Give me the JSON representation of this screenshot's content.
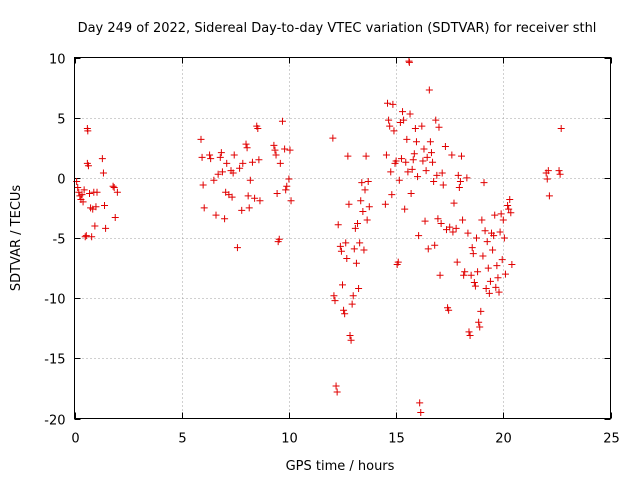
{
  "chart_data": {
    "type": "scatter",
    "title": "Day 249 of 2022, Sidereal Day-to-day VTEC variation (SDTVAR) for receiver sthl",
    "xlabel": "GPS time / hours",
    "ylabel": "SDTVAR / TECUs",
    "xlim": [
      0,
      25
    ],
    "ylim": [
      -20,
      10
    ],
    "xticks": [
      "0",
      "5",
      "10",
      "15",
      "20",
      "25"
    ],
    "yticks": [
      "10",
      "5",
      "0",
      "-5",
      "-10",
      "-15",
      "-20"
    ],
    "grid": true,
    "marker": "plus",
    "color": "#e00000",
    "series": [
      {
        "name": "SDTVAR",
        "points": [
          [
            0.1,
            -0.3
          ],
          [
            0.15,
            -0.8
          ],
          [
            0.2,
            -1.2
          ],
          [
            0.25,
            -1.5
          ],
          [
            0.3,
            -1.8
          ],
          [
            0.35,
            -1.4
          ],
          [
            0.4,
            -2.0
          ],
          [
            0.45,
            -1.0
          ],
          [
            0.5,
            -4.9
          ],
          [
            0.55,
            -4.8
          ],
          [
            0.6,
            4.1
          ],
          [
            0.62,
            3.9
          ],
          [
            0.6,
            1.2
          ],
          [
            0.65,
            1.0
          ],
          [
            0.7,
            -1.3
          ],
          [
            0.75,
            -2.5
          ],
          [
            0.8,
            -4.9
          ],
          [
            0.85,
            -2.6
          ],
          [
            0.9,
            -1.2
          ],
          [
            0.95,
            -4.0
          ],
          [
            1.0,
            -2.4
          ],
          [
            1.05,
            -1.2
          ],
          [
            1.3,
            1.6
          ],
          [
            1.35,
            0.4
          ],
          [
            1.4,
            -2.3
          ],
          [
            1.45,
            -4.2
          ],
          [
            1.8,
            -0.7
          ],
          [
            1.85,
            -0.8
          ],
          [
            1.9,
            -3.3
          ],
          [
            2.0,
            -1.2
          ],
          [
            5.9,
            3.2
          ],
          [
            5.95,
            1.7
          ],
          [
            6.0,
            -0.6
          ],
          [
            6.05,
            -2.5
          ],
          [
            6.3,
            1.9
          ],
          [
            6.35,
            1.6
          ],
          [
            6.5,
            -0.2
          ],
          [
            6.6,
            -3.1
          ],
          [
            6.7,
            0.3
          ],
          [
            6.8,
            1.7
          ],
          [
            6.85,
            2.1
          ],
          [
            6.9,
            0.5
          ],
          [
            7.0,
            -3.4
          ],
          [
            7.05,
            -1.2
          ],
          [
            7.1,
            1.2
          ],
          [
            7.2,
            -1.4
          ],
          [
            7.3,
            0.6
          ],
          [
            7.35,
            -1.6
          ],
          [
            7.4,
            0.4
          ],
          [
            7.45,
            1.9
          ],
          [
            7.6,
            -5.8
          ],
          [
            7.7,
            0.8
          ],
          [
            7.8,
            -2.7
          ],
          [
            7.85,
            1.2
          ],
          [
            8.0,
            2.8
          ],
          [
            8.05,
            2.5
          ],
          [
            8.1,
            -1.5
          ],
          [
            8.15,
            -2.5
          ],
          [
            8.2,
            -0.2
          ],
          [
            8.3,
            1.3
          ],
          [
            8.4,
            -1.7
          ],
          [
            8.5,
            4.3
          ],
          [
            8.55,
            4.1
          ],
          [
            8.6,
            1.5
          ],
          [
            8.65,
            -1.9
          ],
          [
            9.3,
            2.7
          ],
          [
            9.35,
            2.3
          ],
          [
            9.4,
            1.9
          ],
          [
            9.45,
            -1.3
          ],
          [
            9.5,
            -5.3
          ],
          [
            9.55,
            -5.1
          ],
          [
            9.6,
            1.2
          ],
          [
            9.7,
            4.7
          ],
          [
            9.8,
            2.4
          ],
          [
            9.85,
            -1.0
          ],
          [
            9.9,
            -0.7
          ],
          [
            10.0,
            -0.1
          ],
          [
            10.05,
            2.3
          ],
          [
            10.1,
            -1.9
          ],
          [
            12.05,
            3.3
          ],
          [
            12.1,
            -9.8
          ],
          [
            12.15,
            -10.2
          ],
          [
            12.2,
            -17.3
          ],
          [
            12.25,
            -17.8
          ],
          [
            12.3,
            -3.9
          ],
          [
            12.4,
            -5.7
          ],
          [
            12.45,
            -6.1
          ],
          [
            12.5,
            -8.9
          ],
          [
            12.55,
            -11.0
          ],
          [
            12.6,
            -11.3
          ],
          [
            12.65,
            -5.4
          ],
          [
            12.7,
            -6.7
          ],
          [
            12.75,
            1.8
          ],
          [
            12.8,
            -2.2
          ],
          [
            12.85,
            -13.1
          ],
          [
            12.9,
            -13.5
          ],
          [
            12.95,
            -10.5
          ],
          [
            13.0,
            -9.8
          ],
          [
            13.05,
            -5.9
          ],
          [
            13.1,
            -4.2
          ],
          [
            13.15,
            -7.1
          ],
          [
            13.2,
            -3.8
          ],
          [
            13.25,
            -9.2
          ],
          [
            13.3,
            -5.4
          ],
          [
            13.35,
            -1.9
          ],
          [
            13.4,
            -0.4
          ],
          [
            13.45,
            -2.8
          ],
          [
            13.5,
            -6.0
          ],
          [
            13.55,
            -1.0
          ],
          [
            13.6,
            1.8
          ],
          [
            13.65,
            -3.5
          ],
          [
            13.7,
            -0.3
          ],
          [
            13.75,
            -2.4
          ],
          [
            14.5,
            -2.2
          ],
          [
            14.55,
            1.9
          ],
          [
            14.6,
            6.2
          ],
          [
            14.65,
            4.8
          ],
          [
            14.7,
            4.3
          ],
          [
            14.75,
            0.5
          ],
          [
            14.8,
            -1.4
          ],
          [
            14.85,
            6.1
          ],
          [
            14.9,
            3.9
          ],
          [
            14.95,
            1.2
          ],
          [
            15.0,
            1.4
          ],
          [
            15.05,
            -7.2
          ],
          [
            15.1,
            -7.0
          ],
          [
            15.15,
            -0.2
          ],
          [
            15.2,
            4.6
          ],
          [
            15.25,
            1.6
          ],
          [
            15.3,
            5.5
          ],
          [
            15.35,
            4.8
          ],
          [
            15.4,
            -2.6
          ],
          [
            15.45,
            1.3
          ],
          [
            15.5,
            3.2
          ],
          [
            15.55,
            0.5
          ],
          [
            15.6,
            9.7
          ],
          [
            15.62,
            9.6
          ],
          [
            15.65,
            5.3
          ],
          [
            15.7,
            -1.3
          ],
          [
            15.75,
            0.7
          ],
          [
            15.8,
            1.5
          ],
          [
            15.85,
            2.0
          ],
          [
            15.9,
            4.1
          ],
          [
            15.95,
            3.0
          ],
          [
            16.0,
            0.1
          ],
          [
            16.05,
            -4.8
          ],
          [
            16.1,
            -18.7
          ],
          [
            16.15,
            -19.5
          ],
          [
            16.2,
            4.3
          ],
          [
            16.25,
            1.4
          ],
          [
            16.3,
            2.4
          ],
          [
            16.35,
            -3.6
          ],
          [
            16.4,
            0.6
          ],
          [
            16.45,
            1.7
          ],
          [
            16.5,
            -5.9
          ],
          [
            16.55,
            7.3
          ],
          [
            16.6,
            3.0
          ],
          [
            16.65,
            2.1
          ],
          [
            16.7,
            1.3
          ],
          [
            16.75,
            -0.3
          ],
          [
            16.8,
            -5.6
          ],
          [
            16.85,
            4.8
          ],
          [
            16.9,
            0.2
          ],
          [
            16.95,
            -3.4
          ],
          [
            17.0,
            4.2
          ],
          [
            17.05,
            -8.1
          ],
          [
            17.1,
            -3.8
          ],
          [
            17.15,
            0.4
          ],
          [
            17.2,
            -0.6
          ],
          [
            17.3,
            2.6
          ],
          [
            17.35,
            -4.3
          ],
          [
            17.4,
            -10.8
          ],
          [
            17.45,
            -11.0
          ],
          [
            17.5,
            -4.1
          ],
          [
            17.6,
            1.9
          ],
          [
            17.65,
            -4.5
          ],
          [
            17.7,
            -2.1
          ],
          [
            17.8,
            -4.2
          ],
          [
            17.85,
            -7.0
          ],
          [
            17.9,
            0.2
          ],
          [
            17.95,
            -0.8
          ],
          [
            18.0,
            -0.3
          ],
          [
            18.05,
            1.8
          ],
          [
            18.1,
            -3.5
          ],
          [
            18.15,
            -8.1
          ],
          [
            18.2,
            -7.8
          ],
          [
            18.3,
            0.0
          ],
          [
            18.35,
            -4.6
          ],
          [
            18.4,
            -12.8
          ],
          [
            18.45,
            -13.1
          ],
          [
            18.5,
            -8.1
          ],
          [
            18.55,
            -5.8
          ],
          [
            18.6,
            -6.3
          ],
          [
            18.65,
            -8.7
          ],
          [
            18.7,
            -9.0
          ],
          [
            18.75,
            -5.0
          ],
          [
            18.8,
            -7.8
          ],
          [
            18.85,
            -12.0
          ],
          [
            18.9,
            -12.4
          ],
          [
            18.95,
            -11.1
          ],
          [
            19.0,
            -3.5
          ],
          [
            19.05,
            -6.5
          ],
          [
            19.1,
            -0.4
          ],
          [
            19.15,
            -4.4
          ],
          [
            19.2,
            -9.2
          ],
          [
            19.25,
            -5.3
          ],
          [
            19.3,
            -7.5
          ],
          [
            19.35,
            -9.6
          ],
          [
            19.4,
            -8.6
          ],
          [
            19.45,
            -4.6
          ],
          [
            19.5,
            -6.0
          ],
          [
            19.55,
            -4.8
          ],
          [
            19.6,
            -3.1
          ],
          [
            19.65,
            -9.1
          ],
          [
            19.7,
            -7.3
          ],
          [
            19.75,
            -8.3
          ],
          [
            19.8,
            -9.5
          ],
          [
            19.85,
            -4.5
          ],
          [
            19.9,
            -3.0
          ],
          [
            19.95,
            -6.8
          ],
          [
            20.0,
            -3.5
          ],
          [
            20.05,
            -5.0
          ],
          [
            20.1,
            -8.0
          ],
          [
            20.2,
            -2.3
          ],
          [
            20.25,
            -2.6
          ],
          [
            20.3,
            -1.8
          ],
          [
            20.35,
            -2.9
          ],
          [
            20.4,
            -7.2
          ],
          [
            22.0,
            0.4
          ],
          [
            22.05,
            -0.1
          ],
          [
            22.1,
            0.6
          ],
          [
            22.15,
            -1.5
          ],
          [
            22.6,
            0.6
          ],
          [
            22.65,
            0.3
          ],
          [
            22.7,
            4.1
          ]
        ]
      }
    ]
  }
}
